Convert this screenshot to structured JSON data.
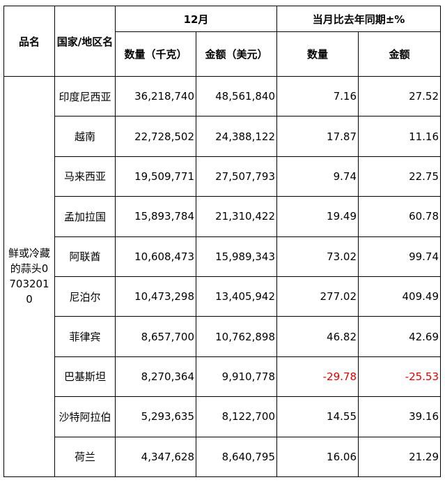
{
  "table": {
    "headers": {
      "product": "品名",
      "region": "国家/地区名",
      "month": "12月",
      "yoy": "当月比去年同期±%",
      "qty": "数量（千克）",
      "amt": "金额（美元）",
      "qty_yoy": "数量",
      "amt_yoy": "金额"
    },
    "product": "鲜或冷藏的蒜头07032010",
    "rows": [
      [
        "印度尼西亚",
        "36,218,740",
        "48,561,840",
        "7.16",
        "27.52"
      ],
      [
        "越南",
        "22,728,502",
        "24,388,122",
        "17.87",
        "11.16"
      ],
      [
        "马来西亚",
        "19,509,771",
        "27,507,793",
        "9.74",
        "22.75"
      ],
      [
        "孟加拉国",
        "15,893,784",
        "21,310,422",
        "19.49",
        "60.78"
      ],
      [
        "阿联酋",
        "10,608,473",
        "15,989,343",
        "73.02",
        "99.74"
      ],
      [
        "尼泊尔",
        "10,473,298",
        "13,405,942",
        "277.02",
        "409.49"
      ],
      [
        "菲律宾",
        "8,657,700",
        "10,762,898",
        "46.82",
        "42.69"
      ],
      [
        "巴基斯坦",
        "8,270,364",
        "9,910,778",
        "-29.78",
        "-25.53"
      ],
      [
        "沙特阿拉伯",
        "5,293,635",
        "8,122,700",
        "14.55",
        "39.16"
      ],
      [
        "荷兰",
        "4,347,628",
        "8,640,795",
        "16.06",
        "21.29"
      ]
    ]
  }
}
